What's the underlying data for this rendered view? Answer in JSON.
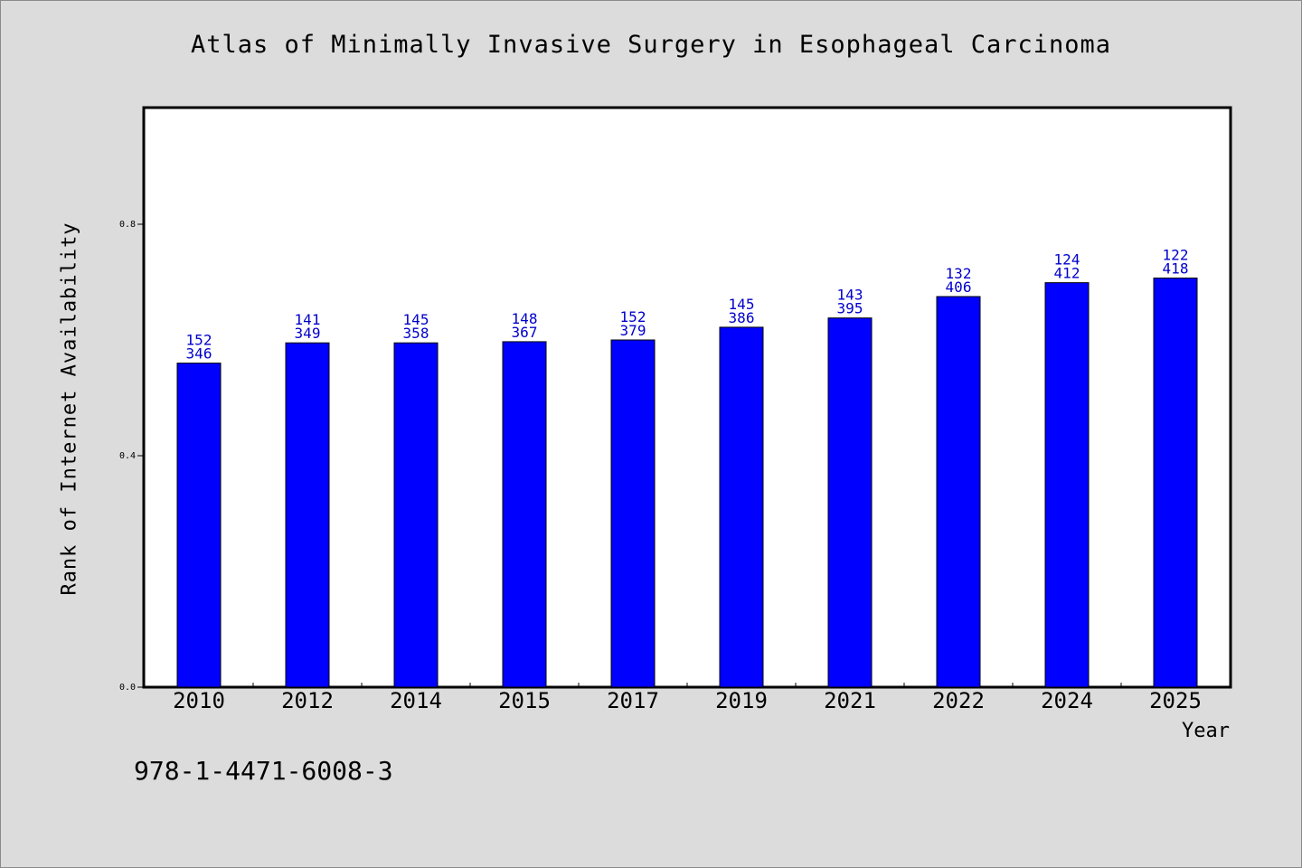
{
  "chart_data": {
    "type": "bar",
    "title": "Atlas of Minimally Invasive Surgery in Esophageal Carcinoma",
    "xlabel": "Year",
    "ylabel": "Rank of Internet Availability",
    "categories": [
      "2010",
      "2012",
      "2014",
      "2015",
      "2017",
      "2019",
      "2021",
      "2022",
      "2024",
      "2025"
    ],
    "values": [
      0.56,
      0.595,
      0.595,
      0.597,
      0.6,
      0.622,
      0.638,
      0.675,
      0.699,
      0.707
    ],
    "bar_labels_top": [
      "152",
      "141",
      "145",
      "148",
      "152",
      "145",
      "143",
      "132",
      "124",
      "122"
    ],
    "bar_labels_bottom": [
      "346",
      "349",
      "358",
      "367",
      "379",
      "386",
      "395",
      "406",
      "412",
      "418"
    ],
    "ylim": [
      0,
      1
    ],
    "yticks": [
      "0.0",
      "0.4",
      "0.8"
    ],
    "bar_color": "#0000ff",
    "label_color": "#0000cc",
    "grid": false,
    "legend": "none"
  },
  "footer": {
    "code": "978-1-4471-6008-3"
  }
}
